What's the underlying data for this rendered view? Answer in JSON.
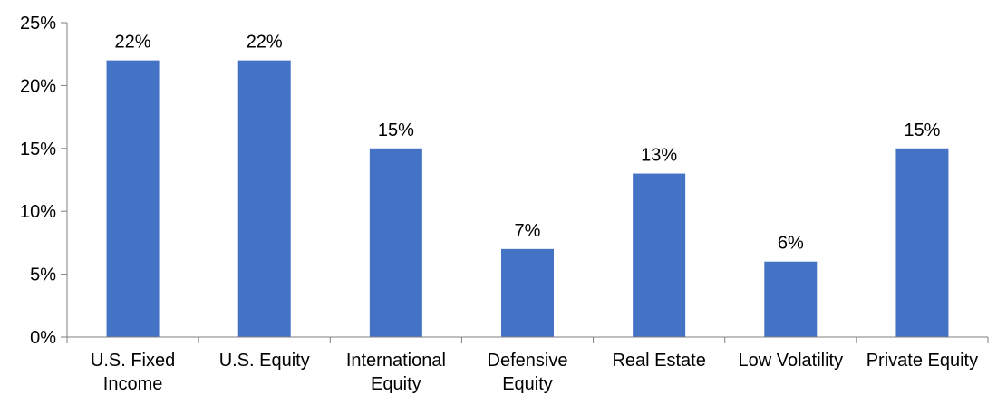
{
  "chart_data": {
    "type": "bar",
    "categories": [
      "U.S. Fixed Income",
      "U.S. Equity",
      "International Equity",
      "Defensive Equity",
      "Real Estate",
      "Low Volatility",
      "Private Equity"
    ],
    "category_lines": [
      [
        "U.S. Fixed",
        "Income"
      ],
      [
        "U.S. Equity"
      ],
      [
        "International",
        "Equity"
      ],
      [
        "Defensive",
        "Equity"
      ],
      [
        "Real Estate"
      ],
      [
        "Low Volatility"
      ],
      [
        "Private Equity"
      ]
    ],
    "values": [
      22,
      22,
      15,
      7,
      13,
      6,
      15
    ],
    "data_labels": [
      "22%",
      "22%",
      "15%",
      "7%",
      "13%",
      "6%",
      "15%"
    ],
    "ylim": [
      0,
      25
    ],
    "yticks": [
      0,
      5,
      10,
      15,
      20,
      25
    ],
    "ytick_labels": [
      "0%",
      "5%",
      "10%",
      "15%",
      "20%",
      "25%"
    ],
    "title": "",
    "xlabel": "",
    "ylabel": "",
    "grid": false,
    "bar_color": "#4472C4"
  }
}
